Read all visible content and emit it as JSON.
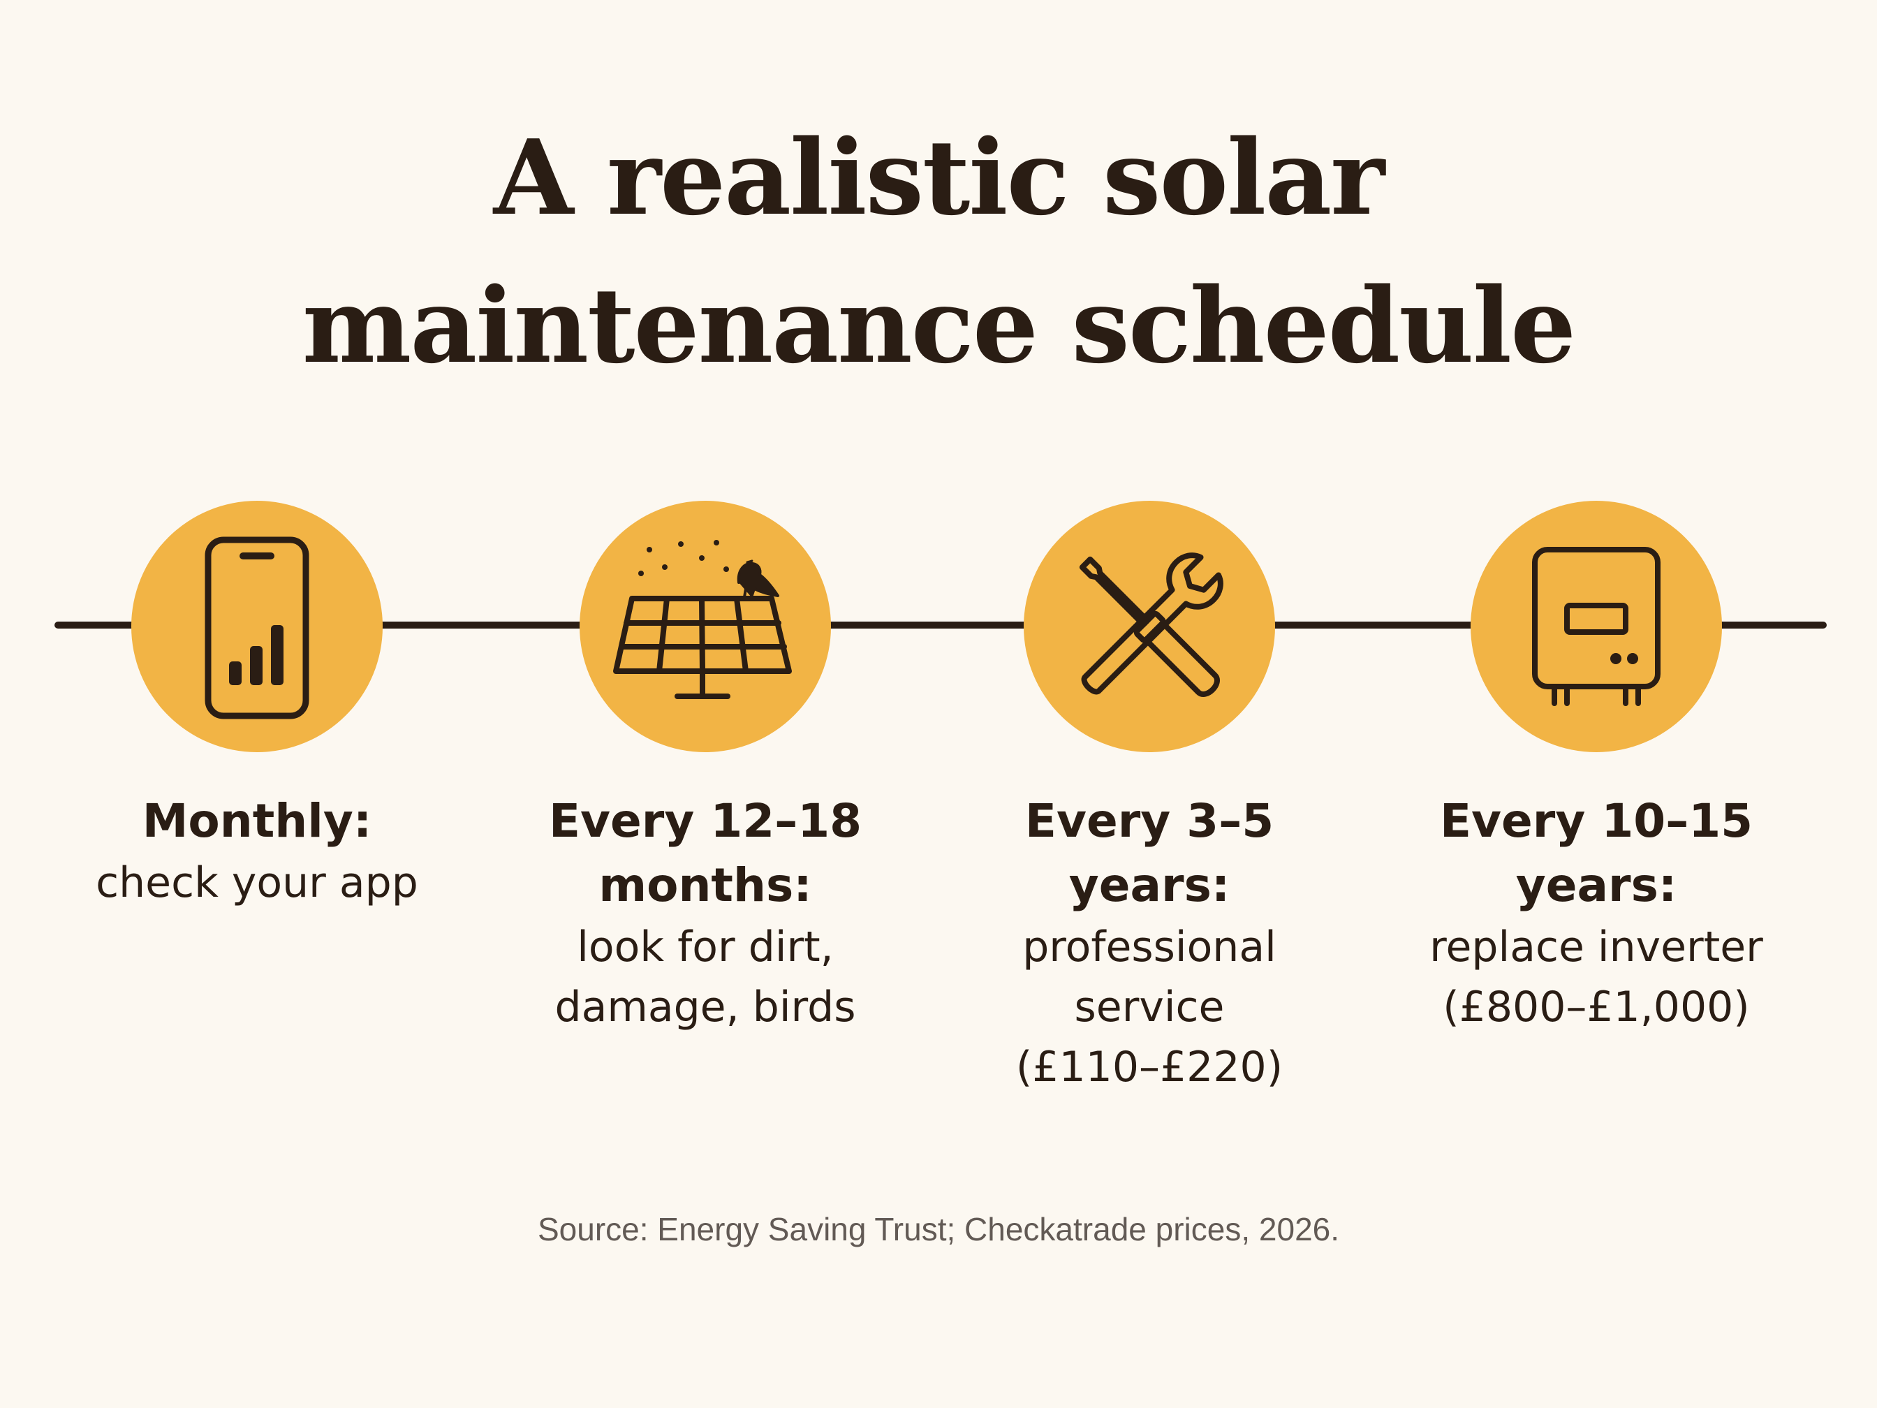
{
  "title": {
    "line1": "A realistic solar",
    "line2": "maintenance schedule"
  },
  "colors": {
    "background": "#fcf8f1",
    "accent": "#f2b445",
    "ink": "#2a1d14",
    "source_text": "#625a55"
  },
  "steps": [
    {
      "icon": "phone-chart-icon",
      "heading_lines": [
        "Monthly:"
      ],
      "desc_lines": [
        "check your app"
      ]
    },
    {
      "icon": "solar-panel-bird-icon",
      "heading_lines": [
        "Every 12–18",
        "months:"
      ],
      "desc_lines": [
        "look for dirt,",
        "damage, birds"
      ]
    },
    {
      "icon": "wrench-screwdriver-icon",
      "heading_lines": [
        "Every 3–5",
        "years:"
      ],
      "desc_lines": [
        "professional",
        "service",
        "(£110–£220)"
      ]
    },
    {
      "icon": "inverter-icon",
      "heading_lines": [
        "Every 10–15",
        "years:"
      ],
      "desc_lines": [
        "replace inverter",
        "(£800–£1,000)"
      ]
    }
  ],
  "source": "Source: Energy Saving Trust; Checkatrade prices, 2026."
}
